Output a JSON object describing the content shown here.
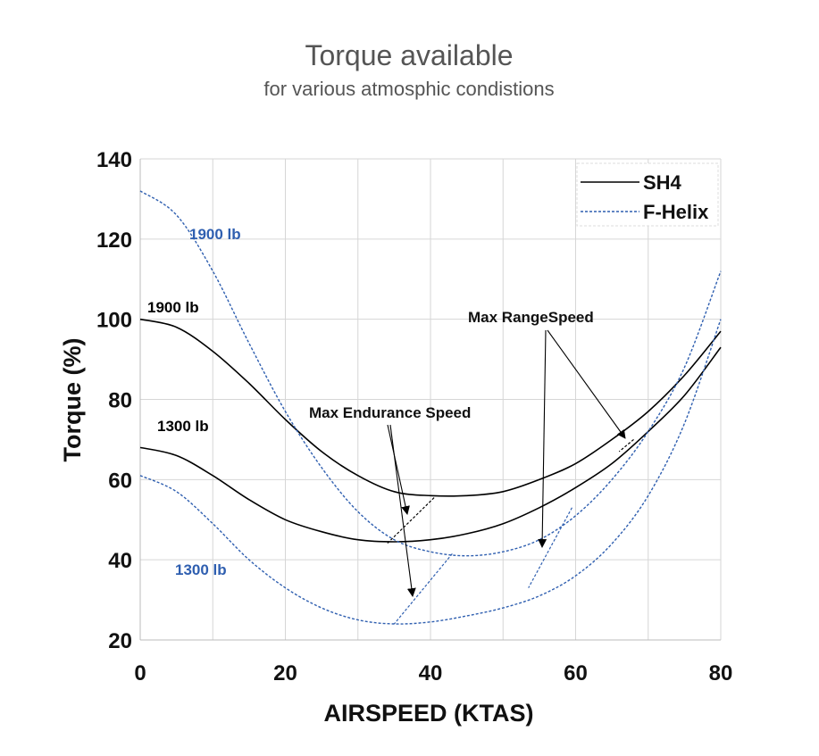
{
  "chart_data": {
    "type": "line",
    "title": "Torque available",
    "subtitle": "for various atmosphic condistions",
    "xlabel": "AIRSPEED (KTAS)",
    "ylabel": "Torque (%)",
    "xlim": [
      0,
      80
    ],
    "ylim": [
      20,
      140
    ],
    "xticks": [
      0,
      20,
      40,
      60,
      80
    ],
    "yticks": [
      20,
      40,
      60,
      80,
      100,
      120,
      140
    ],
    "grid": true,
    "legend_position": "top-right",
    "colors": {
      "SH4": "#000000",
      "F-Helix": "#2f5fb0"
    },
    "legend": [
      {
        "name": "SH4",
        "style": "solid",
        "color": "#000000"
      },
      {
        "name": "F-Helix",
        "style": "dashed",
        "color": "#2f5fb0"
      }
    ],
    "series": [
      {
        "name": "SH4",
        "label": "1900 lb",
        "label_color": "#000000",
        "x": [
          0,
          5,
          10,
          15,
          20,
          25,
          30,
          35,
          40,
          45,
          50,
          55,
          60,
          65,
          70,
          75,
          80
        ],
        "y": [
          100,
          98,
          92,
          84,
          75,
          67,
          61,
          57,
          56,
          56,
          57,
          60,
          64,
          70,
          77,
          86,
          97
        ]
      },
      {
        "name": "SH4",
        "label": "1300 lb",
        "label_color": "#000000",
        "x": [
          0,
          5,
          10,
          15,
          20,
          25,
          30,
          35,
          40,
          45,
          50,
          55,
          60,
          65,
          70,
          75,
          80
        ],
        "y": [
          68,
          66,
          61,
          55,
          50,
          47,
          45,
          44.5,
          45,
          46.5,
          49,
          53,
          58,
          64,
          72,
          81,
          93
        ]
      },
      {
        "name": "F-Helix",
        "label": "1900 lb",
        "label_color": "#2f5fb0",
        "x": [
          0,
          5,
          10,
          15,
          20,
          25,
          30,
          35,
          40,
          45,
          50,
          55,
          60,
          65,
          70,
          75,
          80
        ],
        "y": [
          132,
          126,
          112,
          94,
          77,
          63,
          52,
          45,
          42,
          41,
          42,
          45,
          51,
          60,
          72,
          88,
          112
        ]
      },
      {
        "name": "F-Helix",
        "label": "1300 lb",
        "label_color": "#2f5fb0",
        "x": [
          0,
          5,
          10,
          15,
          20,
          25,
          30,
          35,
          40,
          45,
          50,
          55,
          60,
          65,
          70,
          75,
          80
        ],
        "y": [
          61,
          57,
          49,
          40,
          33,
          28,
          25,
          24,
          24.5,
          26,
          28,
          31,
          36,
          44,
          56,
          74,
          100
        ]
      }
    ],
    "annotations": [
      {
        "text": "Max Endurance Speed"
      },
      {
        "text": "Max RangeSpeed"
      }
    ]
  }
}
